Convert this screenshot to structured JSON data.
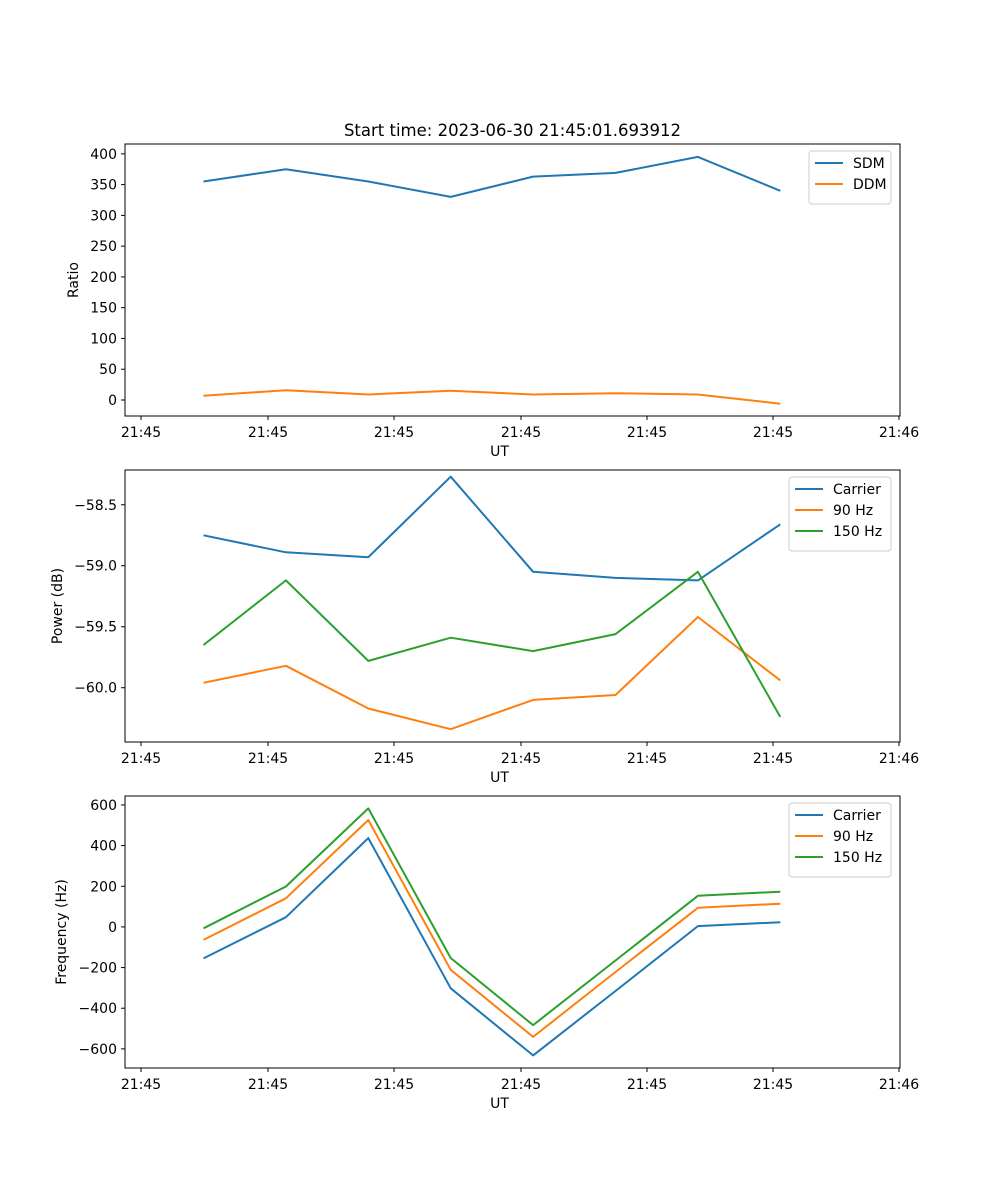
{
  "chart_data": [
    {
      "type": "line",
      "title": "Start time: 2023-06-30 21:45:01.693912",
      "xlabel": "UT",
      "ylabel": "Ratio",
      "x_tick_labels": [
        "21:45",
        "21:45",
        "21:45",
        "21:45",
        "21:45",
        "21:45",
        "21:46"
      ],
      "y_ticks": [
        0,
        50,
        100,
        150,
        200,
        250,
        300,
        350,
        400
      ],
      "y_tick_labels": [
        "0",
        "50",
        "100",
        "150",
        "200",
        "250",
        "300",
        "350",
        "400"
      ],
      "ylim": [
        -26,
        416
      ],
      "x": [
        1,
        2,
        3,
        4,
        5,
        6,
        7,
        8
      ],
      "series": [
        {
          "name": "SDM",
          "color": "#1f77b4",
          "values": [
            355,
            375,
            355,
            330,
            363,
            369,
            395,
            340
          ]
        },
        {
          "name": "DDM",
          "color": "#ff7f0e",
          "values": [
            7,
            16,
            9,
            15,
            9,
            11,
            9,
            -6
          ]
        }
      ],
      "legend": "top-right",
      "grid": false
    },
    {
      "type": "line",
      "title": "",
      "xlabel": "UT",
      "ylabel": "Power (dB)",
      "x_tick_labels": [
        "21:45",
        "21:45",
        "21:45",
        "21:45",
        "21:45",
        "21:45",
        "21:46"
      ],
      "y_ticks": [
        -58.5,
        -59.0,
        -59.5,
        -60.0
      ],
      "y_tick_labels": [
        "−58.5",
        "−59.0",
        "−59.5",
        "−60.0"
      ],
      "ylim": [
        -60.445,
        -58.215
      ],
      "x": [
        1,
        2,
        3,
        4,
        5,
        6,
        7,
        8
      ],
      "series": [
        {
          "name": "Carrier",
          "color": "#1f77b4",
          "values": [
            -58.75,
            -58.89,
            -58.93,
            -58.27,
            -59.05,
            -59.1,
            -59.12,
            -58.66
          ]
        },
        {
          "name": "90 Hz",
          "color": "#ff7f0e",
          "values": [
            -59.96,
            -59.82,
            -60.17,
            -60.34,
            -60.1,
            -60.06,
            -59.42,
            -59.94
          ]
        },
        {
          "name": "150 Hz",
          "color": "#2ca02c",
          "values": [
            -59.65,
            -59.12,
            -59.78,
            -59.59,
            -59.7,
            -59.56,
            -59.05,
            -60.24
          ]
        }
      ],
      "legend": "top-right",
      "grid": false
    },
    {
      "type": "line",
      "title": "",
      "xlabel": "UT",
      "ylabel": "Frequency (Hz)",
      "x_tick_labels": [
        "21:45",
        "21:45",
        "21:45",
        "21:45",
        "21:45",
        "21:45",
        "21:46"
      ],
      "y_ticks": [
        -600,
        -400,
        -200,
        0,
        200,
        400,
        600
      ],
      "y_tick_labels": [
        "−600",
        "−400",
        "−200",
        "0",
        "200",
        "400",
        "600"
      ],
      "ylim": [
        -694,
        644
      ],
      "x": [
        1,
        2,
        3,
        4,
        5,
        6,
        7,
        8
      ],
      "series": [
        {
          "name": "Carrier",
          "color": "#1f77b4",
          "values": [
            -155,
            48,
            437,
            -302,
            -632,
            -315,
            4,
            23
          ]
        },
        {
          "name": "90 Hz",
          "color": "#ff7f0e",
          "values": [
            -64,
            141,
            526,
            -211,
            -541,
            -222,
            94,
            114
          ]
        },
        {
          "name": "150 Hz",
          "color": "#2ca02c",
          "values": [
            -7,
            199,
            583,
            -153,
            -483,
            -165,
            153,
            173
          ]
        }
      ],
      "legend": "top-right",
      "grid": false
    }
  ]
}
